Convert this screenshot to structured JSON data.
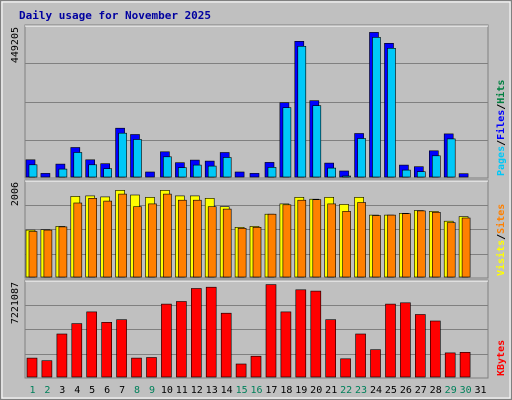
{
  "chart_data": {
    "type": "bar",
    "title": "Daily usage for November 2025",
    "categories": [
      "1",
      "2",
      "3",
      "4",
      "5",
      "6",
      "7",
      "8",
      "9",
      "10",
      "11",
      "12",
      "13",
      "14",
      "15",
      "16",
      "17",
      "18",
      "19",
      "20",
      "21",
      "22",
      "23",
      "24",
      "25",
      "26",
      "27",
      "28",
      "29",
      "30",
      "31"
    ],
    "weekend_days": [
      "1",
      "2",
      "8",
      "9",
      "15",
      "16",
      "22",
      "23",
      "29",
      "30"
    ],
    "panels": [
      {
        "name": "hits-files-pages",
        "ymax_label": "449205",
        "scale_max": 449205,
        "series": [
          {
            "name": "Pages",
            "color": "#00c8f8",
            "values": [
              52000,
              11000,
              39000,
              89000,
              52000,
              40000,
              147000,
              128000,
              15000,
              76000,
              43000,
              51000,
              48000,
              74000,
              15000,
              11000,
              44000,
              224000,
              409000,
              230000,
              42000,
              18000,
              131000,
              436000,
              403000,
              36000,
              31000,
              79000,
              130000,
              10000,
              0
            ]
          },
          {
            "name": "Files",
            "color": "#0000ff",
            "values": [
              52000,
              11000,
              39000,
              89000,
              52000,
              40000,
              147000,
              128000,
              15000,
              76000,
              43000,
              51000,
              48000,
              74000,
              15000,
              11000,
              44000,
              224000,
              409000,
              230000,
              42000,
              18000,
              131000,
              436000,
              403000,
              36000,
              31000,
              79000,
              130000,
              10000,
              0
            ]
          },
          {
            "name": "Hits",
            "color": "#008040",
            "values": [
              52000,
              11000,
              39000,
              89000,
              52000,
              40000,
              147000,
              128000,
              15000,
              76000,
              43000,
              51000,
              48000,
              74000,
              15000,
              11000,
              44000,
              224000,
              409000,
              230000,
              42000,
              18000,
              131000,
              436000,
              403000,
              36000,
              31000,
              79000,
              130000,
              10000,
              0
            ]
          }
        ]
      },
      {
        "name": "visits-sites",
        "ymax_label": "2006",
        "scale_max": 2006,
        "series": [
          {
            "name": "Visits",
            "color": "#ffff00",
            "values": [
              1000,
              1010,
              1080,
              1720,
              1730,
              1710,
              1850,
              1750,
              1700,
              1850,
              1730,
              1730,
              1680,
              1500,
              1060,
              1080,
              1340,
              1560,
              1700,
              1660,
              1700,
              1550,
              1700,
              1320,
              1320,
              1360,
              1420,
              1400,
              1190,
              1290,
              0
            ]
          },
          {
            "name": "Sites",
            "color": "#ff8000",
            "values": [
              970,
              1000,
              1070,
              1580,
              1680,
              1620,
              1770,
              1500,
              1560,
              1770,
              1640,
              1640,
              1500,
              1450,
              1040,
              1060,
              1340,
              1540,
              1640,
              1650,
              1560,
              1400,
              1590,
              1310,
              1320,
              1350,
              1410,
              1380,
              1160,
              1260,
              0
            ]
          }
        ]
      },
      {
        "name": "kbytes",
        "ymax_label": "7221087",
        "scale_max": 7221087,
        "series": [
          {
            "name": "KBytes",
            "color": "#ff0000",
            "values": [
              1450000,
              1250000,
              3300000,
              4100000,
              5000000,
              4200000,
              4400000,
              1450000,
              1500000,
              5600000,
              5800000,
              6800000,
              6900000,
              4900000,
              1000000,
              1600000,
              7100000,
              5000000,
              6700000,
              6600000,
              4400000,
              1400000,
              3300000,
              2100000,
              5600000,
              5700000,
              4800000,
              4300000,
              1850000,
              1900000,
              0
            ]
          }
        ]
      }
    ],
    "legend_side": "right",
    "grid": true
  }
}
